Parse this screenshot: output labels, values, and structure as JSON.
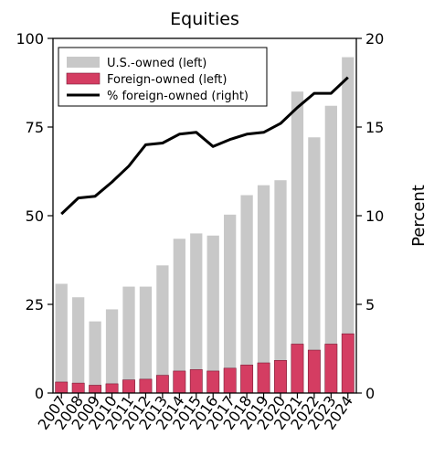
{
  "chart_data": {
    "type": "bar",
    "title": "Equities",
    "xlabel": "",
    "ylabel_left": "",
    "ylabel_right": "Percent",
    "ylim_left": [
      0,
      100
    ],
    "ylim_right": [
      0,
      20
    ],
    "yticks_left": [
      "0",
      "25",
      "50",
      "75",
      "100"
    ],
    "yticks_right": [
      "0",
      "5",
      "10",
      "15",
      "20"
    ],
    "grid": false,
    "legend_position": "top-left",
    "categories": [
      "2007",
      "2008",
      "2009",
      "2010",
      "2011",
      "2012",
      "2013",
      "2014",
      "2015",
      "2016",
      "2017",
      "2018",
      "2019",
      "2020",
      "2021",
      "2022",
      "2023",
      "2024"
    ],
    "series": [
      {
        "name": "U.S.-owned (left)",
        "kind": "bar",
        "axis": "left",
        "color": "#c8c8c8",
        "values": [
          27.7,
          24.2,
          18.0,
          21.0,
          26.3,
          26.1,
          31.0,
          37.3,
          38.4,
          38.2,
          43.3,
          47.9,
          50.1,
          50.8,
          71.2,
          60.0,
          67.2,
          78.0
        ]
      },
      {
        "name": "Foreign-owned (left)",
        "kind": "bar",
        "axis": "left",
        "color": "#d43d62",
        "values": [
          3.1,
          2.8,
          2.2,
          2.6,
          3.7,
          3.9,
          5.0,
          6.2,
          6.6,
          6.2,
          7.0,
          7.9,
          8.5,
          9.2,
          13.8,
          12.1,
          13.8,
          16.7
        ]
      },
      {
        "name": "% foreign-owned (right)",
        "kind": "line",
        "axis": "right",
        "color": "#000000",
        "values": [
          10.1,
          11.0,
          11.1,
          11.9,
          12.8,
          14.0,
          14.1,
          14.6,
          14.7,
          13.9,
          14.3,
          14.6,
          14.7,
          15.2,
          16.1,
          16.9,
          16.9,
          17.8
        ]
      }
    ]
  }
}
